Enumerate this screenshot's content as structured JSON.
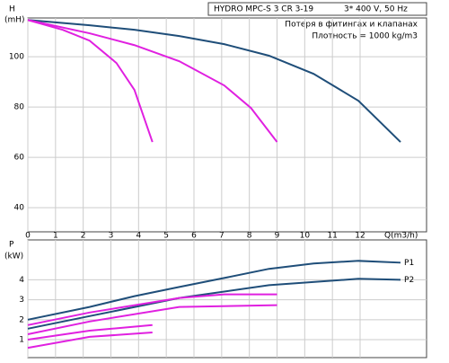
{
  "header": {
    "title": "HYDRO MPC-S 3 CR 3-19",
    "supply": "3* 400 V, 50 Hz",
    "note1": "Потеря в фитингах и клапанах",
    "note2": "Плотность = 1000 kg/m3"
  },
  "chart_data": [
    {
      "type": "line",
      "y_label": "H",
      "y_unit": "(mH)",
      "x_label": "Q(m3/h)",
      "xlim": [
        0,
        14.4
      ],
      "xticks": [
        0,
        1,
        2,
        3,
        4,
        5,
        6,
        7,
        8,
        9,
        10,
        11,
        12
      ],
      "ylim": [
        30.4,
        115.4
      ],
      "yticks": [
        100,
        80,
        60,
        40
      ],
      "grid": true,
      "series": [
        {
          "color": "#1f4e79",
          "x": [
            0,
            2.23,
            3.85,
            5.47,
            7.09,
            8.71,
            10.32,
            11.94,
            13.46
          ],
          "values": [
            114.6,
            112.5,
            110.7,
            108.2,
            105.0,
            100.4,
            93.2,
            82.5,
            66.1
          ]
        },
        {
          "color": "#e020e0",
          "x": [
            0,
            2.23,
            3.85,
            5.47,
            7.09,
            8.06,
            9.0
          ],
          "values": [
            114.6,
            109.3,
            104.6,
            98.2,
            88.6,
            79.6,
            66.1
          ]
        },
        {
          "color": "#e020e0",
          "x": [
            0,
            1.26,
            2.23,
            3.2,
            3.85,
            4.5
          ],
          "values": [
            114.6,
            110.7,
            106.4,
            97.5,
            86.8,
            66.1
          ]
        }
      ]
    },
    {
      "type": "line",
      "y_label": "P",
      "y_unit": "(kW)",
      "xlim": [
        0,
        14.4
      ],
      "ylim": [
        0.1,
        6.0
      ],
      "yticks": [
        1,
        2,
        3,
        4
      ],
      "grid": true,
      "series": [
        {
          "color": "#1f4e79",
          "label": "P1",
          "x": [
            0,
            2.23,
            3.85,
            5.47,
            7.09,
            8.71,
            10.32,
            11.94,
            13.46
          ],
          "values": [
            2.0,
            2.64,
            3.18,
            3.64,
            4.09,
            4.55,
            4.82,
            4.95,
            4.86
          ]
        },
        {
          "color": "#1f4e79",
          "label": "P2",
          "x": [
            0,
            2.23,
            5.47,
            8.71,
            11.94,
            13.46
          ],
          "values": [
            1.55,
            2.18,
            3.09,
            3.73,
            4.05,
            4.0
          ]
        },
        {
          "color": "#e020e0",
          "x": [
            0,
            2.23,
            5.47,
            7.09,
            9.0
          ],
          "values": [
            1.73,
            2.36,
            3.09,
            3.27,
            3.27
          ]
        },
        {
          "color": "#e020e0",
          "x": [
            0,
            2.23,
            5.47,
            9.0
          ],
          "values": [
            1.27,
            1.91,
            2.64,
            2.73
          ]
        },
        {
          "color": "#e020e0",
          "x": [
            0,
            2.23,
            4.5
          ],
          "values": [
            1.0,
            1.45,
            1.73
          ]
        },
        {
          "color": "#e020e0",
          "x": [
            0,
            2.23,
            4.5
          ],
          "values": [
            0.59,
            1.14,
            1.36
          ]
        }
      ]
    }
  ]
}
